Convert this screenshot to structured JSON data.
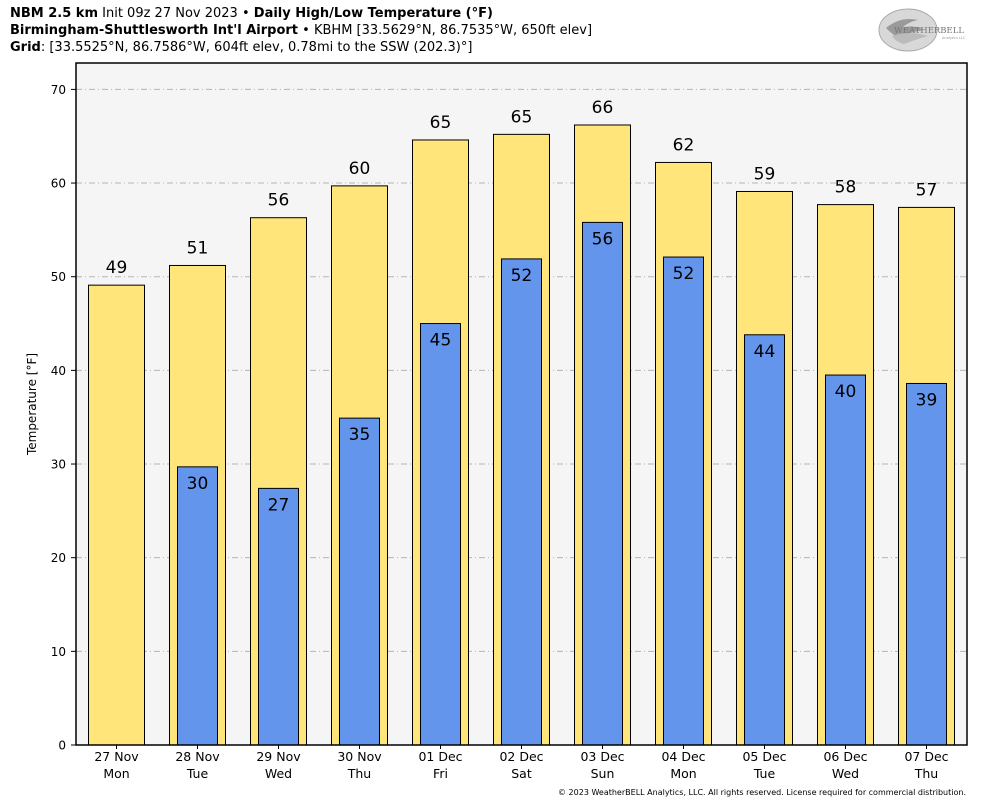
{
  "header": {
    "line1_model": "NBM 2.5 km",
    "line1_init": "Init 09z 27 Nov 2023",
    "line1_sep": "•",
    "line1_title": "Daily High/Low Temperature (°F)",
    "line2_station": "Birmingham-Shuttlesworth Int'l Airport",
    "line2_sep": "•",
    "line2_details": "KBHM [33.5629°N, 86.7535°W, 650ft elev]",
    "line3_label": "Grid",
    "line3_details": ": [33.5525°N, 86.7586°W, 604ft elev, 0.78mi to the SSW (202.3)°]"
  },
  "logo": {
    "text_main": "WEATHERBELL",
    "text_sub": "Analytics LLC"
  },
  "footer": {
    "copyright": "© 2023 WeatherBELL Analytics, LLC. All rights reserved. License required for commercial distribution."
  },
  "chart_data": {
    "type": "bar",
    "ylabel": "Temperature [°F]",
    "ylim": [
      0,
      70
    ],
    "yticks": [
      0,
      10,
      20,
      30,
      40,
      50,
      60,
      70
    ],
    "grid": true,
    "categories": [
      "27 Nov",
      "28 Nov",
      "29 Nov",
      "30 Nov",
      "01 Dec",
      "02 Dec",
      "03 Dec",
      "04 Dec",
      "05 Dec",
      "06 Dec",
      "07 Dec"
    ],
    "days": [
      "Mon",
      "Tue",
      "Wed",
      "Thu",
      "Fri",
      "Sat",
      "Sun",
      "Mon",
      "Tue",
      "Wed",
      "Thu"
    ],
    "series": [
      {
        "values": [
          49.1,
          51.2,
          56.3,
          59.7,
          64.6,
          65.2,
          66.2,
          62.2,
          59.1,
          57.7,
          57.4
        ],
        "labels": [
          "49",
          "51",
          "56",
          "60",
          "65",
          "65",
          "66",
          "62",
          "59",
          "58",
          "57"
        ],
        "color": "#ffe57a"
      },
      {
        "values": [
          null,
          29.7,
          27.4,
          34.9,
          45.0,
          51.9,
          55.8,
          52.1,
          43.8,
          39.5,
          38.6
        ],
        "labels": [
          "",
          "30",
          "27",
          "35",
          "45",
          "52",
          "56",
          "52",
          "44",
          "40",
          "39"
        ],
        "color": "#6495ed"
      }
    ]
  }
}
